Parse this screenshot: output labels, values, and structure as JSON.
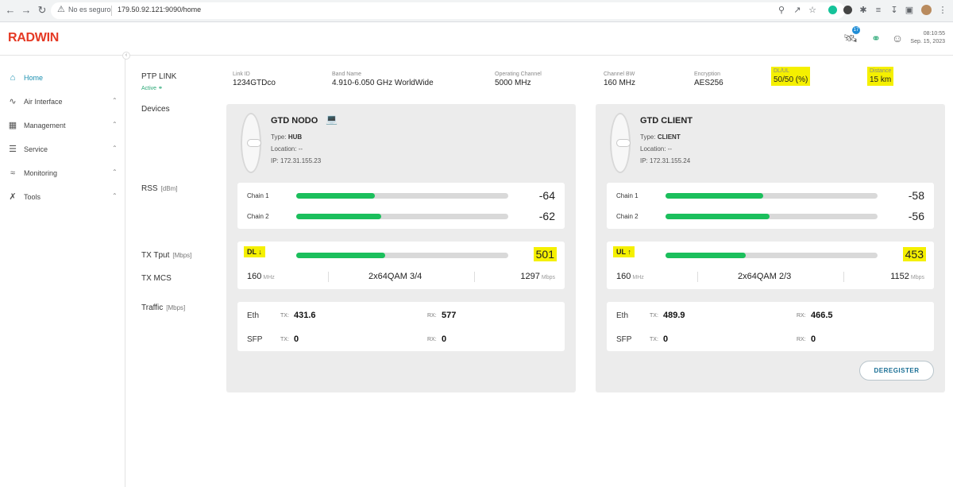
{
  "browser": {
    "url_warning": "No es seguro",
    "url": "179.50.92.121:9090/home"
  },
  "header": {
    "logo": "RADWIN",
    "notif_count": "17",
    "time": "08:10:55",
    "date": "Sep. 15, 2023"
  },
  "sidebar": {
    "items": [
      {
        "label": "Home",
        "icon": "home-icon"
      },
      {
        "label": "Air Interface",
        "icon": "wifi-icon"
      },
      {
        "label": "Management",
        "icon": "network-icon"
      },
      {
        "label": "Service",
        "icon": "sliders-icon"
      },
      {
        "label": "Monitoring",
        "icon": "wireless-icon"
      },
      {
        "label": "Tools",
        "icon": "tools-icon"
      }
    ]
  },
  "main": {
    "ptp_label": "PTP LINK",
    "active_label": "Active",
    "devices_label": "Devices",
    "rss_label": "RSS",
    "rss_unit": "[dBm]",
    "txtput_label": "TX Tput",
    "txtput_unit": "[Mbps]",
    "txmcs_label": "TX MCS",
    "traffic_label": "Traffic",
    "traffic_unit": "[Mbps]",
    "link": {
      "link_id_label": "Link ID",
      "link_id": "1234GTDco",
      "band_label": "Band Name",
      "band": "4.910-6.050 GHz WorldWide",
      "channel_label": "Operating Channel",
      "channel": "5000 MHz",
      "bw_label": "Channel BW",
      "bw": "160 MHz",
      "enc_label": "Encryption",
      "enc": "AES256",
      "dlul_label": "DL/UL",
      "dlul": "50/50 (%)",
      "dist_label": "Distance",
      "dist": "15 km"
    }
  },
  "devices": [
    {
      "name": "GTD NODO",
      "type_label": "Type:",
      "type": "HUB",
      "location_label": "Location:",
      "location": "--",
      "ip_label": "IP:",
      "ip": "172.31.155.23",
      "chain1_label": "Chain 1",
      "chain1": "-64",
      "chain1_fill": 0.37,
      "chain2_label": "Chain 2",
      "chain2": "-62",
      "chain2_fill": 0.4,
      "dir": "DL ↓",
      "tput": "501",
      "tput_fill": 0.42,
      "bw": "160",
      "bw_unit": "MHz",
      "mcs": "2x64QAM 3/4",
      "cap": "1297",
      "cap_unit": "Mbps",
      "eth_label": "Eth",
      "eth_tx_label": "TX:",
      "eth_tx": "431.6",
      "eth_rx_label": "RX:",
      "eth_rx": "577",
      "sfp_label": "SFP",
      "sfp_tx_label": "TX:",
      "sfp_tx": "0",
      "sfp_rx_label": "RX:",
      "sfp_rx": "0"
    },
    {
      "name": "GTD CLIENT",
      "type_label": "Type:",
      "type": "CLIENT",
      "location_label": "Location:",
      "location": "--",
      "ip_label": "IP:",
      "ip": "172.31.155.24",
      "chain1_label": "Chain 1",
      "chain1": "-58",
      "chain1_fill": 0.46,
      "chain2_label": "Chain 2",
      "chain2": "-56",
      "chain2_fill": 0.49,
      "dir": "UL ↑",
      "tput": "453",
      "tput_fill": 0.38,
      "bw": "160",
      "bw_unit": "MHz",
      "mcs": "2x64QAM 2/3",
      "cap": "1152",
      "cap_unit": "Mbps",
      "eth_label": "Eth",
      "eth_tx_label": "TX:",
      "eth_tx": "489.9",
      "eth_rx_label": "RX:",
      "eth_rx": "466.5",
      "sfp_label": "SFP",
      "sfp_tx_label": "TX:",
      "sfp_tx": "0",
      "sfp_rx_label": "RX:",
      "sfp_rx": "0",
      "deregister": "DEREGISTER"
    }
  ]
}
